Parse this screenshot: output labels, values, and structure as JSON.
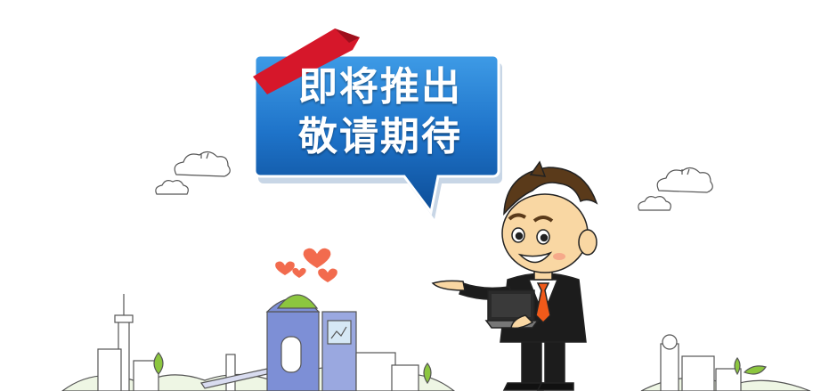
{
  "banner": {
    "line1": "即将推出",
    "line2": "敬请期待"
  },
  "colors": {
    "bubble_blue": "#1e73c9",
    "bubble_blue_dark": "#0d4d97",
    "ribbon_red": "#d6172a",
    "tie_orange": "#f05a1a",
    "hair_brown": "#5a3a1a",
    "skin": "#f9d7a3",
    "suit_black": "#1c1c1c",
    "building_blue": "#7d8fd6",
    "grass_green": "#8cc63f",
    "heart_coral": "#f26b4e"
  },
  "icons": {
    "cloud_left": "cloud-icon",
    "cloud_right": "cloud-icon",
    "laptop": "laptop-icon"
  }
}
